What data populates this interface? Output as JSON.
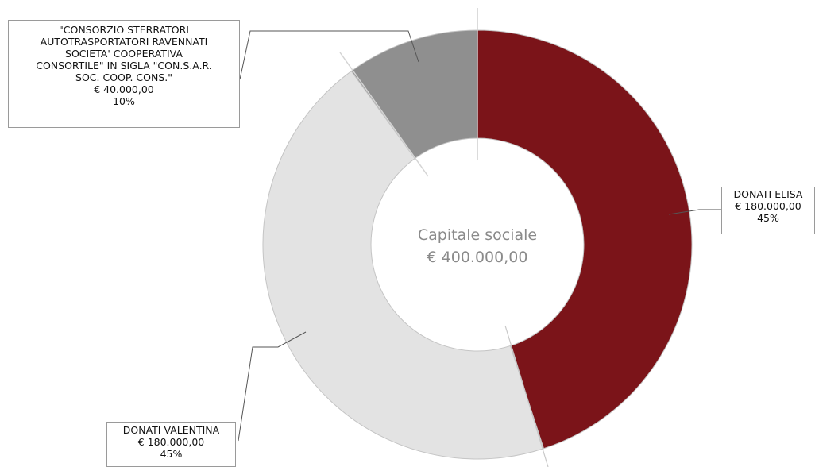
{
  "chart_data": {
    "type": "pie",
    "donut": true,
    "center_label": [
      "Capitale sociale",
      "€ 400.000,00"
    ],
    "slices": [
      {
        "name": "DONATI ELISA",
        "value_label": "€ 180.000,00",
        "percent_label": "45%",
        "value": 180000,
        "percent": 45,
        "color": "#7b1419"
      },
      {
        "name": "DONATI VALENTINA",
        "value_label": "€ 180.000,00",
        "percent_label": "45%",
        "value": 180000,
        "percent": 45,
        "color": "#e3e3e3"
      },
      {
        "name_lines": [
          "\"CONSORZIO STERRATORI",
          "AUTOTRASPORTATORI RAVENNATI",
          "SOCIETA' COOPERATIVA",
          "CONSORTILE\" IN SIGLA \"CON.S.A.R.",
          "SOC. COOP. CONS.\""
        ],
        "value_label": "€ 40.000,00",
        "percent_label": "10%",
        "value": 40000,
        "percent": 10,
        "color": "#8f8f8f"
      }
    ],
    "total": 400000
  }
}
